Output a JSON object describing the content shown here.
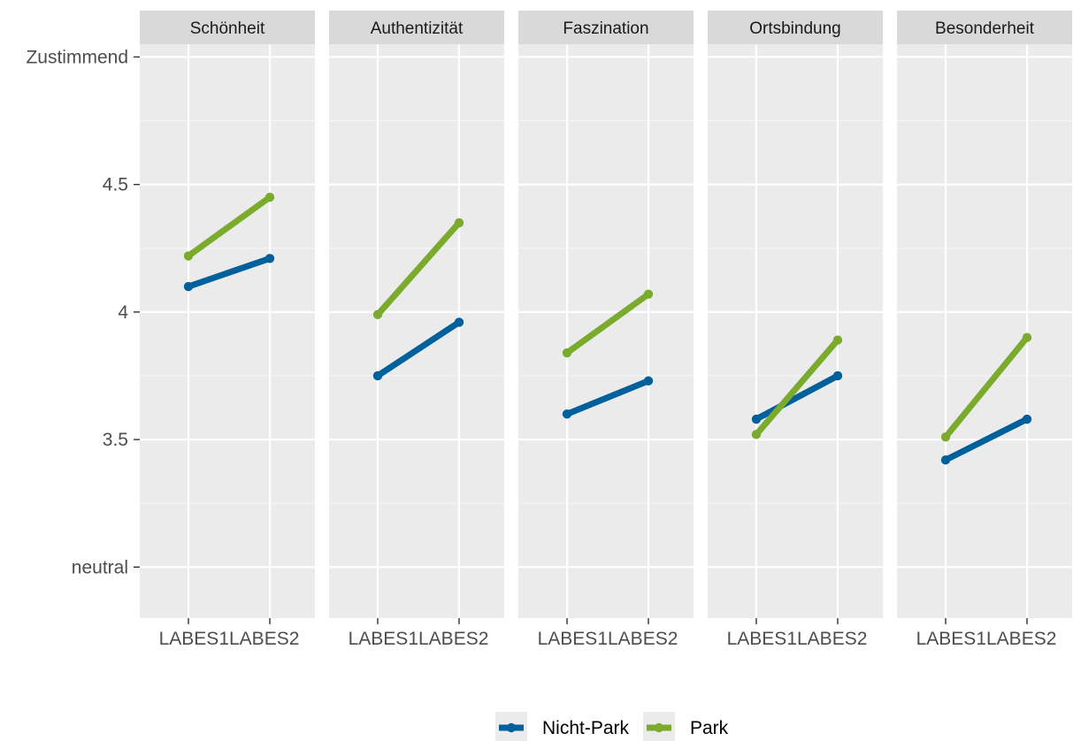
{
  "chart_data": {
    "type": "line",
    "facets": [
      "Schönheit",
      "Authentizität",
      "Faszination",
      "Ortsbindung",
      "Besonderheit"
    ],
    "categories": [
      "LABES1",
      "LABES2"
    ],
    "ylim": [
      2.8,
      5.05
    ],
    "yticks": [
      {
        "value": 5,
        "label": "Zustimmend"
      },
      {
        "value": 4.5,
        "label": "4.5"
      },
      {
        "value": 4,
        "label": "4"
      },
      {
        "value": 3.5,
        "label": "3.5"
      },
      {
        "value": 3,
        "label": "neutral"
      }
    ],
    "series": [
      {
        "name": "Nicht-Park",
        "color": "#00609c",
        "values": [
          [
            4.1,
            4.21
          ],
          [
            3.75,
            3.96
          ],
          [
            3.6,
            3.73
          ],
          [
            3.58,
            3.75
          ],
          [
            3.42,
            3.58
          ]
        ]
      },
      {
        "name": "Park",
        "color": "#7aab2c",
        "values": [
          [
            4.22,
            4.45
          ],
          [
            3.99,
            4.35
          ],
          [
            3.84,
            4.07
          ],
          [
            3.52,
            3.89
          ],
          [
            3.51,
            3.9
          ]
        ]
      }
    ],
    "grid": true,
    "legend_position": "bottom",
    "panel_background": "#ebebeb",
    "strip_background": "#d9d9d9"
  }
}
